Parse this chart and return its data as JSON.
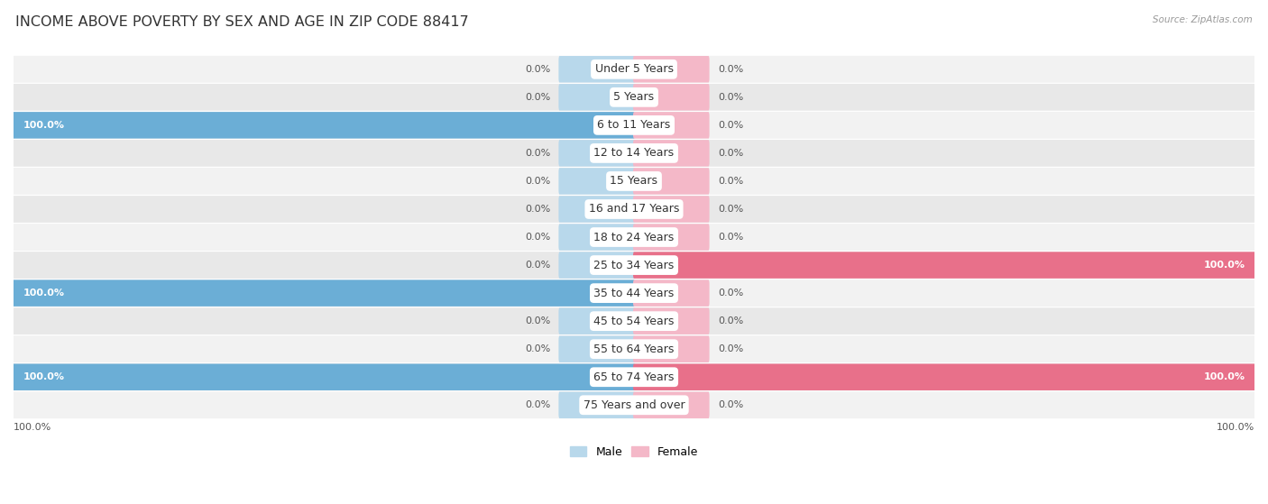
{
  "title": "INCOME ABOVE POVERTY BY SEX AND AGE IN ZIP CODE 88417",
  "source": "Source: ZipAtlas.com",
  "categories": [
    "Under 5 Years",
    "5 Years",
    "6 to 11 Years",
    "12 to 14 Years",
    "15 Years",
    "16 and 17 Years",
    "18 to 24 Years",
    "25 to 34 Years",
    "35 to 44 Years",
    "45 to 54 Years",
    "55 to 64 Years",
    "65 to 74 Years",
    "75 Years and over"
  ],
  "male_values": [
    0.0,
    0.0,
    100.0,
    0.0,
    0.0,
    0.0,
    0.0,
    0.0,
    100.0,
    0.0,
    0.0,
    100.0,
    0.0
  ],
  "female_values": [
    0.0,
    0.0,
    0.0,
    0.0,
    0.0,
    0.0,
    0.0,
    100.0,
    0.0,
    0.0,
    0.0,
    100.0,
    0.0
  ],
  "male_color_light": "#B8D8EB",
  "male_color_full": "#6BAED6",
  "female_color_light": "#F4B8C8",
  "female_color_full": "#E8708A",
  "male_label": "Male",
  "female_label": "Female",
  "row_bg_color_odd": "#F2F2F2",
  "row_bg_color_even": "#E8E8E8",
  "title_fontsize": 11.5,
  "label_fontsize": 9,
  "value_fontsize": 8,
  "max_value": 100.0,
  "stub_size": 12.0
}
